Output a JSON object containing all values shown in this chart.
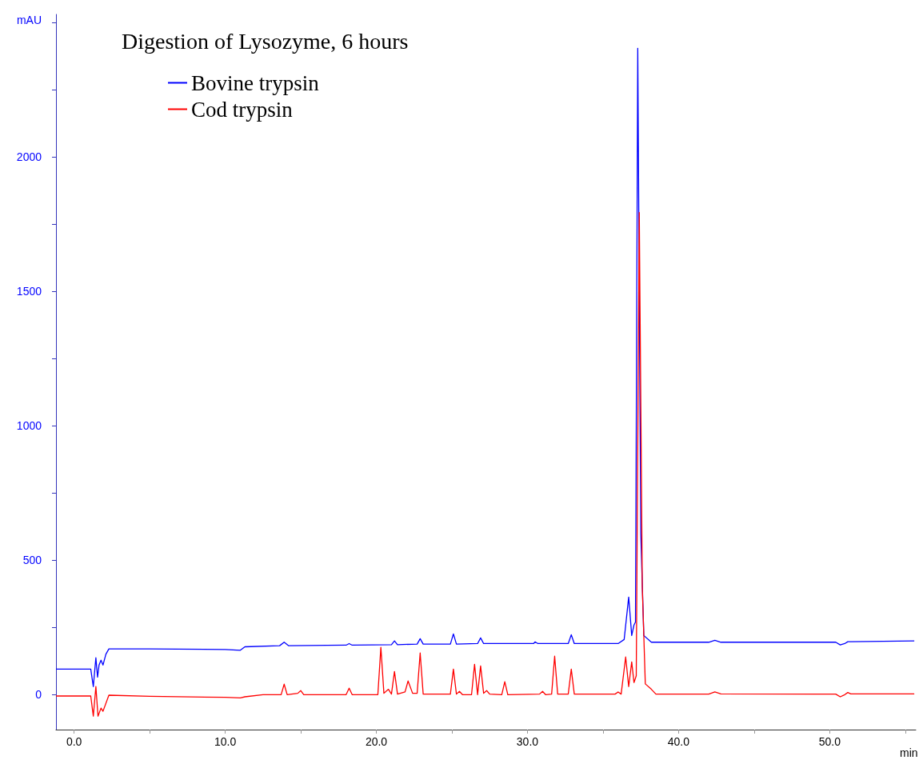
{
  "chart_data": {
    "type": "line",
    "title": "Digestion of Lysozyme, 6 hours",
    "xlabel": "min",
    "ylabel": "mAU",
    "xlim": [
      -1.2,
      55.7
    ],
    "ylim": [
      -130,
      2530
    ],
    "xticks": [
      {
        "value": 0,
        "label": "0.0"
      },
      {
        "value": 5,
        "label": null
      },
      {
        "value": 10,
        "label": "10.0"
      },
      {
        "value": 15,
        "label": null
      },
      {
        "value": 20,
        "label": "20.0"
      },
      {
        "value": 25,
        "label": null
      },
      {
        "value": 30,
        "label": "30.0"
      },
      {
        "value": 35,
        "label": null
      },
      {
        "value": 40,
        "label": "40.0"
      },
      {
        "value": 45,
        "label": null
      },
      {
        "value": 50,
        "label": "50.0"
      },
      {
        "value": 55,
        "label": null
      }
    ],
    "yticks": [
      0,
      {
        "value": 250,
        "label": null
      },
      500,
      {
        "value": 750,
        "label": null
      },
      1000,
      {
        "value": 1250,
        "label": null
      },
      1500,
      {
        "value": 1750,
        "label": null
      },
      2000,
      {
        "value": 2250,
        "label": null
      },
      {
        "value": 2500,
        "label": null
      }
    ],
    "grid": false,
    "legend": "top left",
    "marker": "none",
    "line_style": "solid",
    "series": [
      {
        "name": "Bovine trypsin",
        "color": "#0000ff",
        "x": [
          -1.2,
          0,
          1.1,
          1.27,
          1.38,
          1.44,
          1.55,
          1.65,
          1.78,
          1.91,
          2.1,
          2.3,
          5,
          10,
          11,
          11.3,
          13.6,
          13.9,
          14.2,
          18,
          18.2,
          18.4,
          21,
          21.2,
          21.4,
          22.7,
          22.9,
          23.1,
          24.9,
          25.1,
          25.3,
          26.7,
          26.9,
          27.1,
          30.4,
          30.5,
          30.7,
          32.7,
          32.9,
          33.1,
          36,
          36.4,
          36.7,
          36.9,
          37.05,
          37.15,
          37.3,
          37.5,
          37.7,
          38.2,
          42,
          42.4,
          42.8,
          50.4,
          50.7,
          51,
          51.2,
          51.4,
          55.6
        ],
        "values": [
          95,
          95,
          95,
          30,
          100,
          137,
          65,
          110,
          128,
          110,
          150,
          170,
          170,
          168,
          165,
          178,
          182,
          195,
          182,
          184,
          190,
          184,
          186,
          200,
          186,
          188,
          208,
          188,
          188,
          226,
          188,
          190,
          211,
          190,
          190,
          196,
          190,
          190,
          223,
          190,
          190,
          205,
          363,
          220,
          259,
          270,
          2404,
          600,
          220,
          195,
          195,
          202,
          195,
          195,
          185,
          190,
          197,
          197,
          200
        ]
      },
      {
        "name": "Cod trypsin",
        "color": "#ff0000",
        "x": [
          -1.2,
          0,
          1.1,
          1.27,
          1.44,
          1.58,
          1.78,
          1.91,
          2.3,
          5,
          10,
          11,
          11.3,
          12.5,
          13,
          13.7,
          13.9,
          14.1,
          14.8,
          15,
          15.2,
          18,
          18.2,
          18.4,
          20.1,
          20.3,
          20.5,
          20.8,
          21,
          21.2,
          21.4,
          21.9,
          22.1,
          22.4,
          22.7,
          22.9,
          23.1,
          24.9,
          25.1,
          25.3,
          25.5,
          25.7,
          26.3,
          26.5,
          26.7,
          26.9,
          27.1,
          27.3,
          27.5,
          28.3,
          28.5,
          28.7,
          30.8,
          31,
          31.2,
          31.6,
          31.8,
          32,
          32.7,
          32.9,
          33.1,
          35.8,
          36,
          36.2,
          36.5,
          36.7,
          36.9,
          37.05,
          37.2,
          37.4,
          37.6,
          37.8,
          38.2,
          38.5,
          42,
          42.4,
          42.8,
          50.4,
          50.7,
          51,
          51.2,
          51.4,
          55.6
        ],
        "values": [
          -5,
          -5,
          -5,
          -80,
          30,
          -80,
          -50,
          -62,
          -2,
          -6,
          -10,
          -12,
          -8,
          0,
          0,
          0,
          39,
          0,
          5,
          15,
          0,
          0,
          24,
          0,
          0,
          176,
          5,
          20,
          2,
          86,
          2,
          10,
          51,
          5,
          5,
          155,
          2,
          2,
          95,
          2,
          12,
          0,
          0,
          113,
          0,
          107,
          5,
          15,
          2,
          0,
          48,
          0,
          2,
          12,
          0,
          2,
          143,
          2,
          2,
          95,
          2,
          2,
          10,
          2,
          140,
          30,
          122,
          45,
          70,
          1793,
          400,
          40,
          20,
          2,
          2,
          10,
          3,
          2,
          -8,
          0,
          8,
          3,
          3
        ]
      }
    ]
  }
}
